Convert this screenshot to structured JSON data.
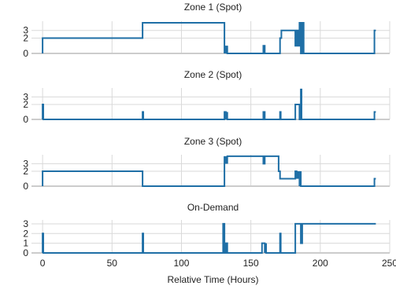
{
  "chart_data": [
    {
      "type": "line",
      "title": "Zone 1 (Spot)",
      "y_ticks": [
        0,
        2,
        3
      ],
      "x_ticks": [
        0,
        50,
        100,
        150,
        200,
        250
      ],
      "xlim": [
        -8,
        250
      ],
      "ylim": [
        0,
        4.2
      ],
      "grid": true,
      "show_x_tick_labels": false,
      "xlabel": "",
      "series": [
        {
          "x": [
            0,
            0,
            72,
            72,
            131,
            131,
            132,
            132,
            133,
            133,
            159,
            159,
            160,
            160,
            171,
            171,
            172,
            172,
            176,
            176,
            182,
            182,
            183,
            183,
            184,
            184,
            185,
            185,
            186,
            186,
            187,
            187,
            188,
            188,
            239,
            239,
            240
          ],
          "y": [
            0,
            2,
            2,
            4,
            4,
            0,
            1,
            0,
            1,
            0,
            0,
            1,
            1,
            0,
            0,
            2,
            2,
            3,
            3,
            3,
            3,
            1,
            1,
            3,
            3,
            1,
            1,
            4,
            4,
            0,
            0,
            4,
            4,
            0,
            0,
            3,
            3
          ]
        }
      ]
    },
    {
      "type": "line",
      "title": "Zone 2 (Spot)",
      "y_ticks": [
        0,
        2,
        3
      ],
      "x_ticks": [
        0,
        50,
        100,
        150,
        200,
        250
      ],
      "xlim": [
        -8,
        250
      ],
      "ylim": [
        0,
        4.2
      ],
      "grid": true,
      "show_x_tick_labels": false,
      "xlabel": "",
      "series": [
        {
          "x": [
            0,
            0,
            0.5,
            0.5,
            72,
            72,
            72.5,
            72.5,
            131,
            131,
            132,
            132,
            133,
            133,
            159,
            159,
            160,
            160,
            171,
            171,
            171.5,
            171.5,
            182,
            182,
            183,
            183,
            185,
            185,
            186,
            186,
            186.5,
            186.5,
            239,
            239,
            240
          ],
          "y": [
            0,
            2,
            2,
            0,
            0,
            1,
            1,
            0,
            0,
            1,
            1,
            0,
            1,
            0,
            0,
            1,
            1,
            0,
            0,
            1,
            1,
            0,
            0,
            2,
            2,
            2,
            2,
            0,
            0,
            4,
            4,
            0,
            0,
            1,
            1
          ]
        }
      ]
    },
    {
      "type": "line",
      "title": "Zone 3 (Spot)",
      "y_ticks": [
        0,
        2,
        3
      ],
      "x_ticks": [
        0,
        50,
        100,
        150,
        200,
        250
      ],
      "xlim": [
        -8,
        250
      ],
      "ylim": [
        0,
        4.2
      ],
      "grid": true,
      "show_x_tick_labels": false,
      "xlabel": "",
      "series": [
        {
          "x": [
            0,
            0,
            0,
            72,
            72,
            131,
            131,
            132,
            132,
            133,
            133,
            159,
            159,
            160,
            160,
            170,
            170,
            171,
            171,
            182,
            182,
            183,
            183,
            184,
            184,
            185,
            185,
            186,
            186,
            187,
            187,
            239,
            239,
            240
          ],
          "y": [
            0,
            1,
            2,
            2,
            0,
            0,
            4,
            3,
            4,
            3,
            4,
            4,
            3,
            3,
            4,
            4,
            2,
            2,
            1,
            1,
            2,
            2,
            1,
            2,
            1,
            2,
            0,
            2,
            0,
            0,
            0,
            0,
            1,
            1
          ]
        }
      ]
    },
    {
      "type": "line",
      "title": "On-Demand",
      "y_ticks": [
        0,
        1,
        2,
        3
      ],
      "x_ticks": [
        0,
        50,
        100,
        150,
        200,
        250
      ],
      "xlim": [
        -8,
        250
      ],
      "ylim": [
        0,
        3.4
      ],
      "grid": true,
      "show_x_tick_labels": true,
      "xlabel": "Relative Time (Hours)",
      "series": [
        {
          "x": [
            0,
            0,
            0.5,
            0.5,
            72,
            72,
            72.5,
            72.5,
            130,
            130,
            131,
            131,
            132,
            132,
            133,
            133,
            158,
            158,
            160,
            160,
            161,
            161,
            171,
            171,
            171.5,
            171.5,
            182,
            182,
            182.5,
            182.5,
            186,
            186,
            187,
            187,
            188,
            188,
            240
          ],
          "y": [
            0,
            2,
            2,
            0,
            0,
            2,
            2,
            0,
            0,
            3,
            3,
            0,
            0,
            1,
            1,
            0,
            0,
            1,
            1,
            0,
            1,
            0,
            0,
            2,
            2,
            0,
            0,
            3,
            3,
            3,
            3,
            1,
            1,
            3,
            3,
            3,
            3
          ]
        }
      ]
    }
  ],
  "colors": {
    "line": "#1f6fa6",
    "grid": "#d9d9d9",
    "baseline": "#cccccc",
    "text": "#222222"
  }
}
